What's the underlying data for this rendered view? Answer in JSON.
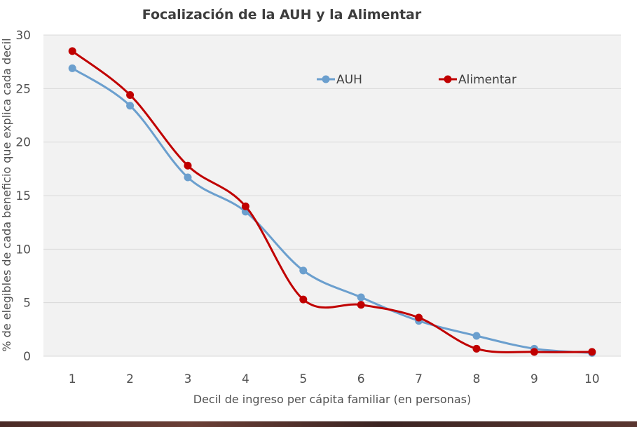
{
  "chart_data": {
    "type": "line",
    "title": "Focalización de la AUH y la Alimentar",
    "xlabel": "Decil de ingreso per cápita familiar (en personas)",
    "ylabel": "% de elegibles de cada beneficio que explica cada decil",
    "x": [
      1,
      2,
      3,
      4,
      5,
      6,
      7,
      8,
      9,
      10
    ],
    "xlim": [
      0.5,
      10.5
    ],
    "ylim": [
      0,
      30
    ],
    "yticks": [
      0,
      5,
      10,
      15,
      20,
      25,
      30
    ],
    "grid": true,
    "legend_position": "top-right",
    "series": [
      {
        "name": "AUH",
        "color": "#6b9fce",
        "values": [
          26.9,
          23.4,
          16.7,
          13.5,
          8.0,
          5.5,
          3.3,
          1.9,
          0.7,
          0.3
        ]
      },
      {
        "name": "Alimentar",
        "color": "#c00000",
        "values": [
          28.5,
          24.4,
          17.8,
          14.0,
          5.3,
          4.8,
          3.6,
          0.7,
          0.4,
          0.4
        ]
      }
    ]
  }
}
